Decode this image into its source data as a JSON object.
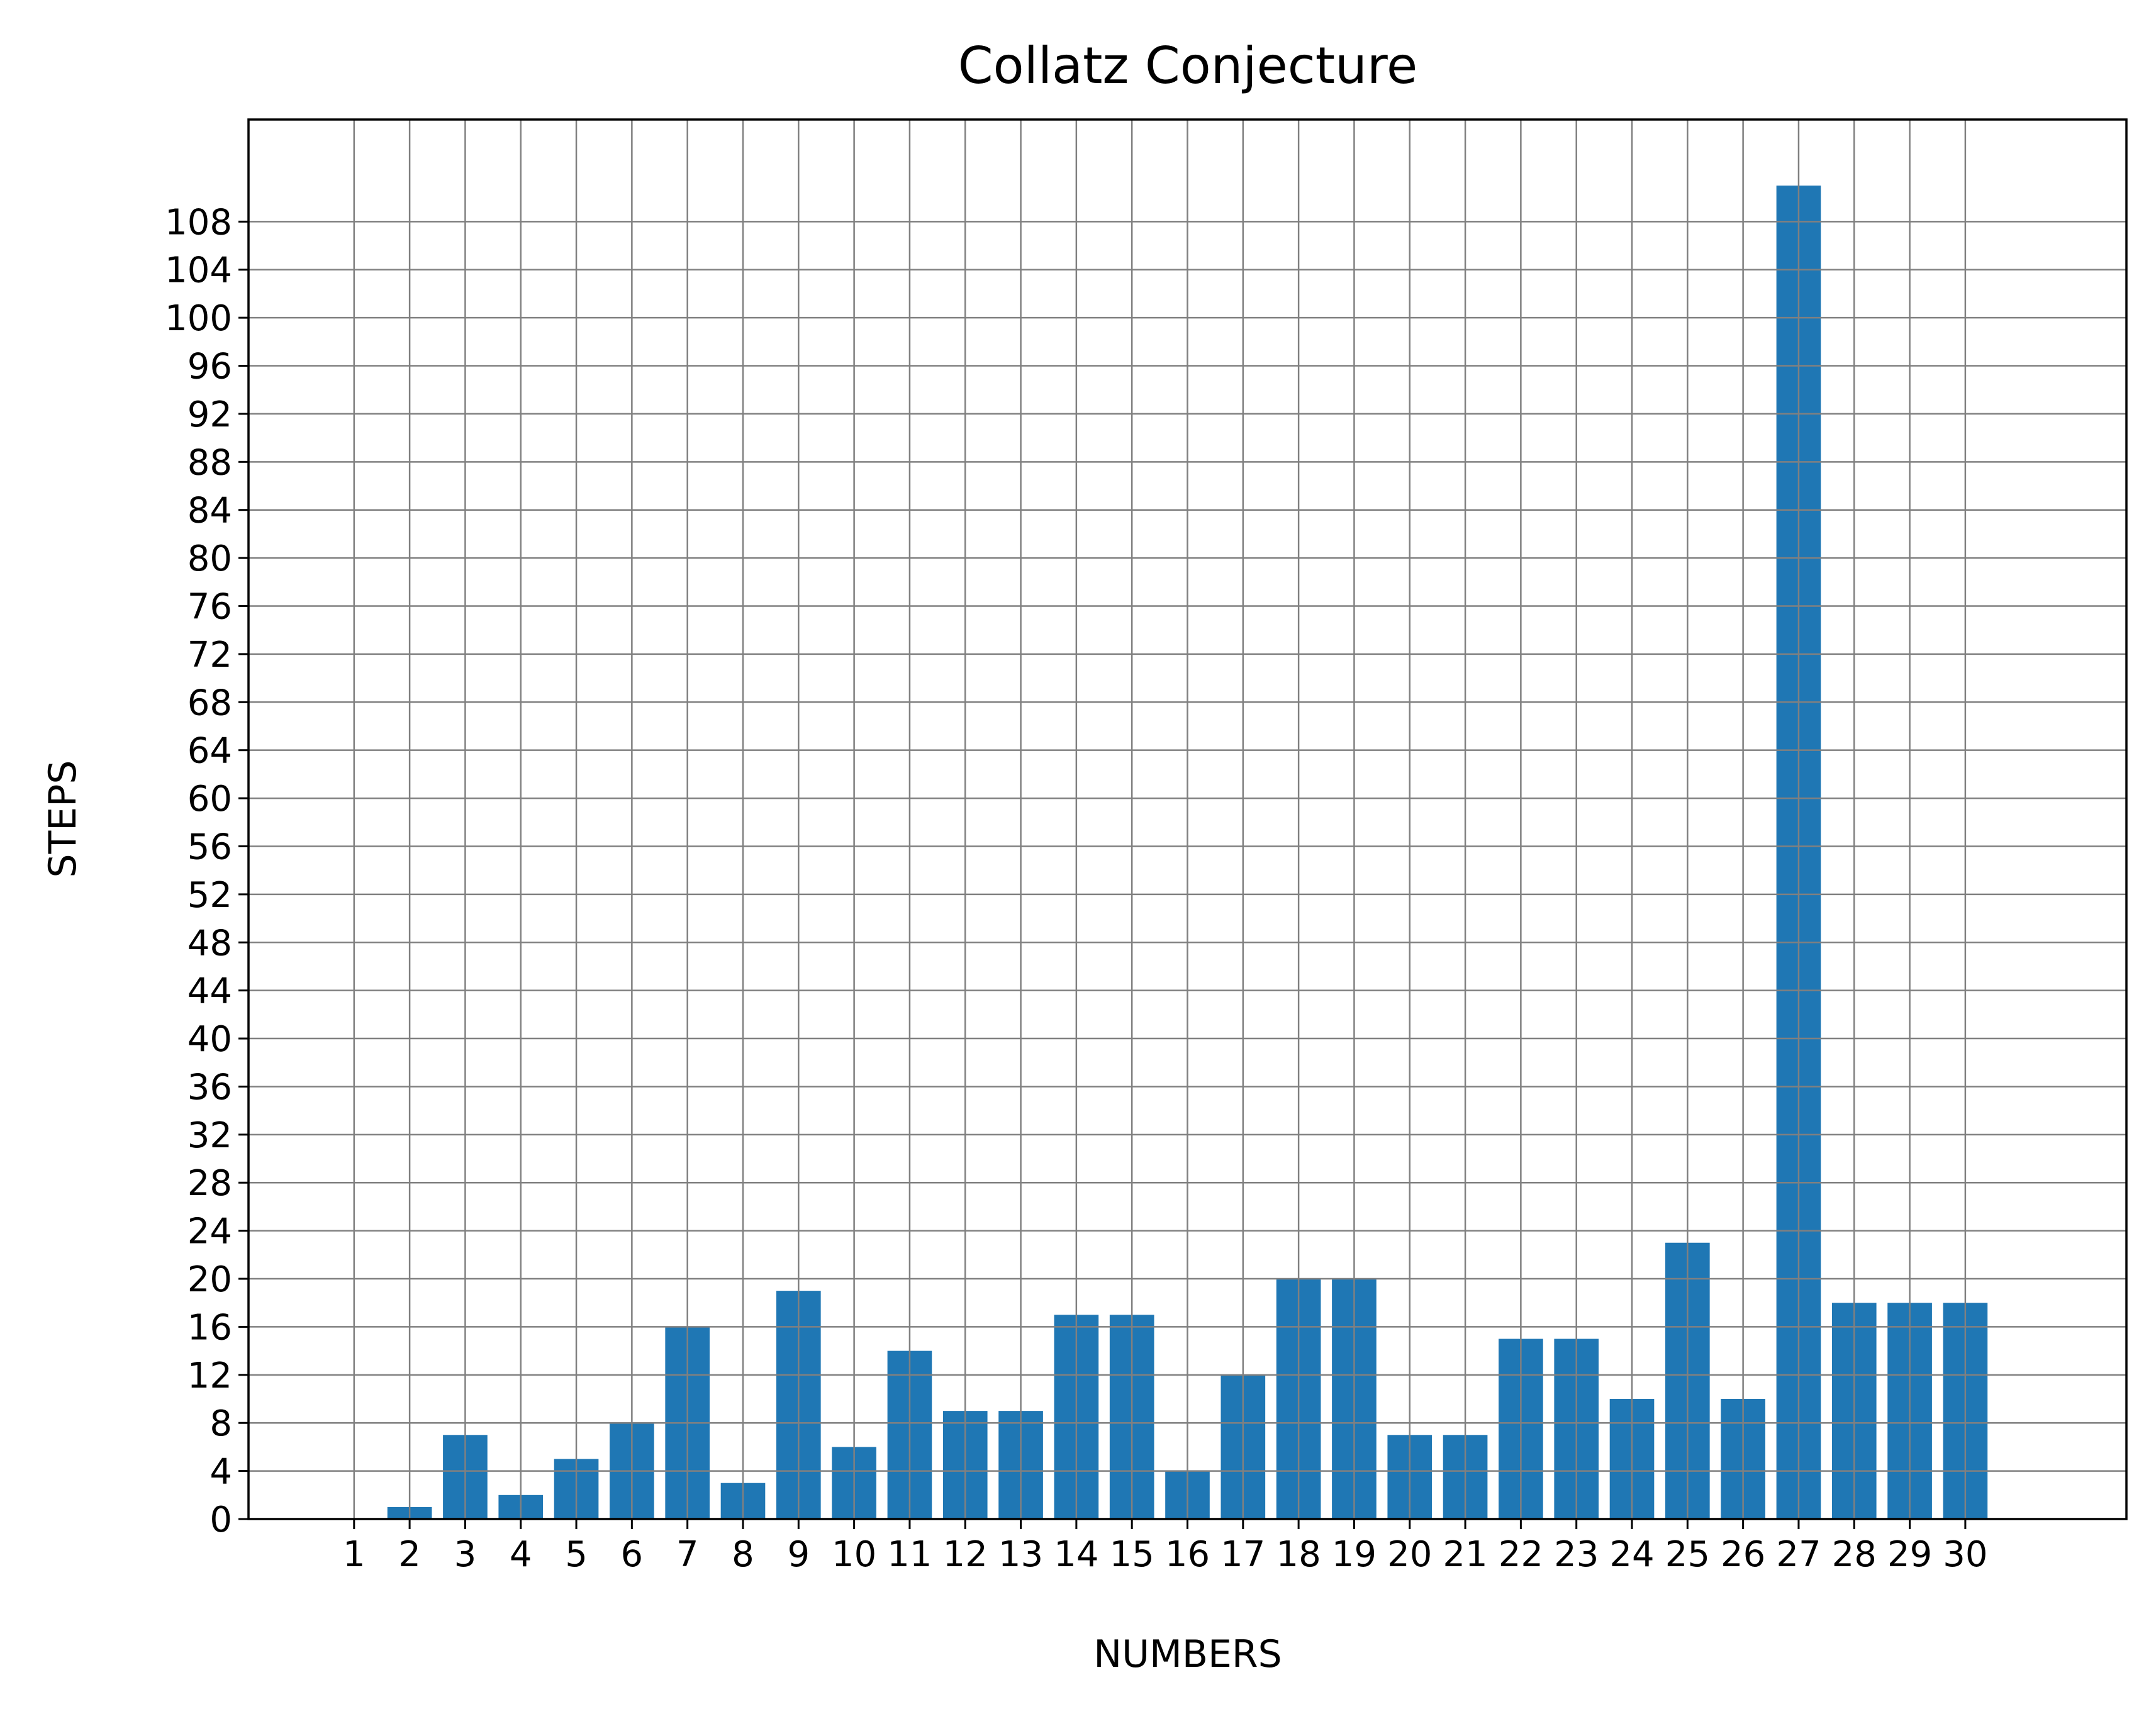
{
  "chart_data": {
    "type": "bar",
    "title": "Collatz Conjecture",
    "xlabel": "NUMBERS",
    "ylabel": "STEPS",
    "categories": [
      "1",
      "2",
      "3",
      "4",
      "5",
      "6",
      "7",
      "8",
      "9",
      "10",
      "11",
      "12",
      "13",
      "14",
      "15",
      "16",
      "17",
      "18",
      "19",
      "20",
      "21",
      "22",
      "23",
      "24",
      "25",
      "26",
      "27",
      "28",
      "29",
      "30"
    ],
    "values": [
      0,
      1,
      7,
      2,
      5,
      8,
      16,
      3,
      19,
      6,
      14,
      9,
      9,
      17,
      17,
      4,
      12,
      20,
      20,
      7,
      7,
      15,
      15,
      10,
      23,
      10,
      111,
      18,
      18,
      18
    ],
    "yticks": [
      0,
      4,
      8,
      12,
      16,
      20,
      24,
      28,
      32,
      36,
      40,
      44,
      48,
      52,
      56,
      60,
      64,
      68,
      72,
      76,
      80,
      84,
      88,
      92,
      96,
      100,
      104,
      108
    ],
    "ylim": [
      0,
      116.5
    ],
    "xlim": [
      -1.9,
      31.9
    ],
    "grid": true,
    "legend": "none",
    "bar_color": "#1f77b4",
    "grid_color": "#808080"
  }
}
